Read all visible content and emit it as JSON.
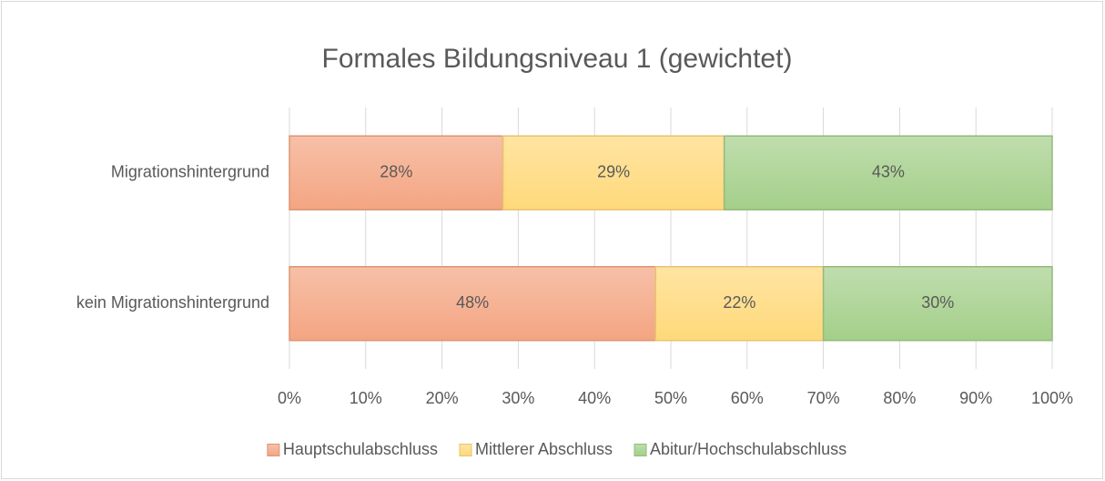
{
  "chart_data": {
    "type": "stacked_bar_horizontal",
    "title": "Formales Bildungsniveau 1 (gewichtet)",
    "categories": [
      "Migrationshintergrund",
      "kein Migrationshintergrund"
    ],
    "series": [
      {
        "name": "Hauptschulabschluss",
        "color": "#f4a582",
        "values": [
          28,
          48
        ],
        "value_labels": [
          "28%",
          "48%"
        ]
      },
      {
        "name": "Mittlerer Abschluss",
        "color": "#ffd97a",
        "values": [
          29,
          22
        ],
        "value_labels": [
          "29%",
          "22%"
        ]
      },
      {
        "name": "Abitur/Hochschulabschluss",
        "color": "#a4cf8a",
        "values": [
          43,
          30
        ],
        "value_labels": [
          "43%",
          "30%"
        ]
      }
    ],
    "xlim": [
      0,
      100
    ],
    "xticks": [
      {
        "value": 0,
        "label": "0%"
      },
      {
        "value": 10,
        "label": "10%"
      },
      {
        "value": 20,
        "label": "20%"
      },
      {
        "value": 30,
        "label": "30%"
      },
      {
        "value": 40,
        "label": "40%"
      },
      {
        "value": 50,
        "label": "50%"
      },
      {
        "value": 60,
        "label": "60%"
      },
      {
        "value": 70,
        "label": "70%"
      },
      {
        "value": 80,
        "label": "80%"
      },
      {
        "value": 90,
        "label": "90%"
      },
      {
        "value": 100,
        "label": "100%"
      }
    ],
    "grid": true,
    "legend": "bottom"
  }
}
